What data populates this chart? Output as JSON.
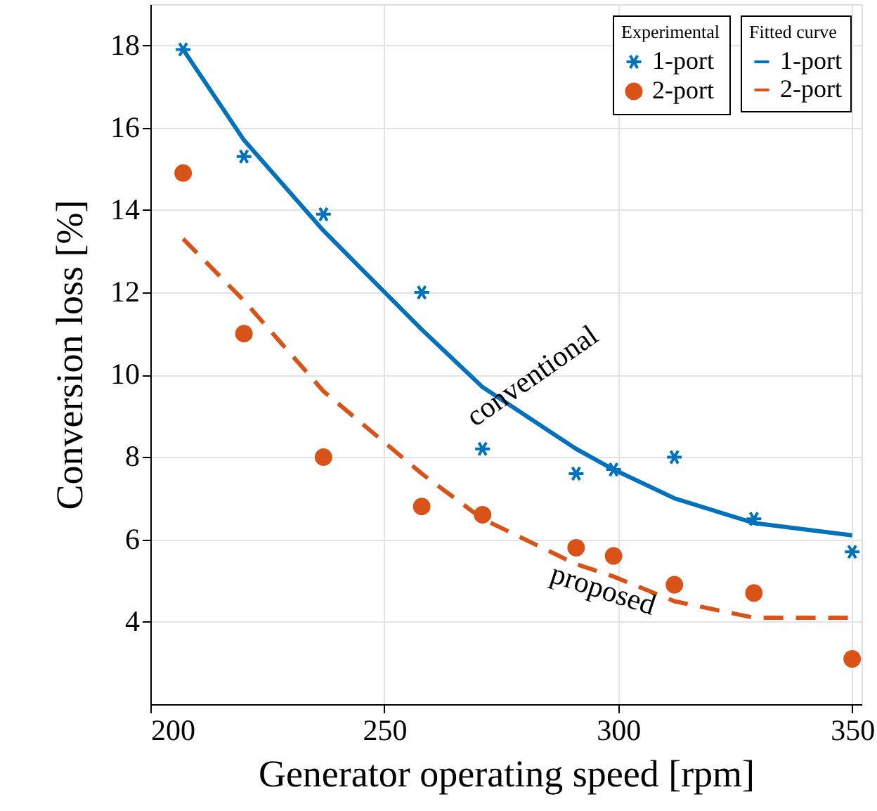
{
  "chart_data": {
    "type": "scatter",
    "xlabel": "Generator operating speed [rpm]",
    "ylabel": "Conversion loss [%]",
    "xlim": [
      200,
      352
    ],
    "xticks": [
      200,
      250,
      300,
      350
    ],
    "ylim": [
      2,
      19
    ],
    "yticks": [
      4,
      6,
      8,
      10,
      12,
      14,
      16,
      18
    ],
    "grid": true,
    "legend": "top right",
    "x": [
      207,
      220,
      237,
      258,
      271,
      291,
      299,
      312,
      329,
      350
    ],
    "series": [
      {
        "name": "1-port",
        "type": "scatter",
        "marker": "cross",
        "color": "#0072bd",
        "values": [
          17.9,
          15.3,
          13.9,
          12.0,
          8.2,
          7.6,
          7.7,
          8.0,
          6.5,
          5.7
        ]
      },
      {
        "name": "2-port",
        "type": "scatter",
        "marker": "circle",
        "color": "#d95319",
        "values": [
          14.9,
          11.0,
          8.0,
          6.8,
          6.6,
          5.8,
          5.6,
          4.9,
          4.7,
          3.1
        ]
      },
      {
        "name": "1-port",
        "type": "line",
        "line_style": "solid",
        "color": "#0072bd",
        "values": [
          17.9,
          15.7,
          13.5,
          11.1,
          9.7,
          8.2,
          7.7,
          7.0,
          6.4,
          6.1
        ]
      },
      {
        "name": "2-port",
        "type": "line",
        "line_style": "dashed",
        "color": "#d95319",
        "values": [
          13.3,
          11.8,
          9.6,
          7.6,
          6.5,
          5.4,
          5.1,
          4.5,
          4.1,
          4.1
        ]
      }
    ],
    "annotations": [
      "Experimental",
      "Fitted curve",
      "conventional",
      "proposed"
    ]
  }
}
